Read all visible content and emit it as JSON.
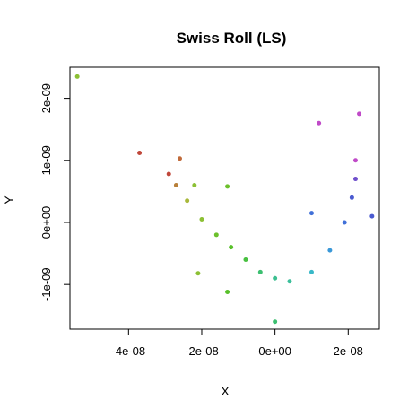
{
  "chart_data": {
    "type": "scatter",
    "title": "Swiss Roll (LS)",
    "xlabel": "X",
    "ylabel": "Y",
    "xlim": [
      -5.6e-08,
      2.85e-08
    ],
    "ylim": [
      -1.72e-09,
      2.5e-09
    ],
    "x_ticks": [
      {
        "value": -4e-08,
        "label": "-4e-08"
      },
      {
        "value": -2e-08,
        "label": "-2e-08"
      },
      {
        "value": 0,
        "label": "0e+00"
      },
      {
        "value": 2e-08,
        "label": "2e-08"
      }
    ],
    "y_ticks": [
      {
        "value": -1e-09,
        "label": "-1e-09"
      },
      {
        "value": 0,
        "label": "0e+00"
      },
      {
        "value": 1e-09,
        "label": "1e-09"
      },
      {
        "value": 2e-09,
        "label": "2e-09"
      }
    ],
    "grid": false,
    "legend": "none",
    "color_scale": "rainbow along the roll: red at upper-left arm, through yellow-green and green at the bottom, cyan and blue up the right arm, magenta at the top right",
    "colors": {
      "red": "#c0473a",
      "olive": "#a8b83a",
      "green": "#58c02a",
      "teal": "#3cbf9b",
      "blue": "#4a5ad0",
      "magenta": "#c04ac8"
    },
    "series": [
      {
        "values": [
          {
            "x": -2.9e-08,
            "y": 7.8e-10,
            "color": "#c0473a"
          },
          {
            "x": -2.7e-08,
            "y": 6e-10,
            "color": "#b8803a"
          },
          {
            "x": -2.4e-08,
            "y": 3.5e-10,
            "color": "#a8b83a"
          },
          {
            "x": -2e-08,
            "y": 5e-11,
            "color": "#8cc034"
          },
          {
            "x": -1.6e-08,
            "y": -2e-10,
            "color": "#6cc02c"
          },
          {
            "x": -1.2e-08,
            "y": -4e-10,
            "color": "#58c02a"
          },
          {
            "x": -8e-09,
            "y": -6e-10,
            "color": "#48c040"
          },
          {
            "x": -4e-09,
            "y": -8e-10,
            "color": "#3cbf70"
          },
          {
            "x": 0.0,
            "y": -9e-10,
            "color": "#3cbf90"
          },
          {
            "x": 4e-09,
            "y": -9.5e-10,
            "color": "#3cbf9b"
          },
          {
            "x": 1e-08,
            "y": -8e-10,
            "color": "#38b8c8"
          },
          {
            "x": 1.5e-08,
            "y": -4.5e-10,
            "color": "#3a98d8"
          },
          {
            "x": 1.9e-08,
            "y": 0.0,
            "color": "#4070d8"
          },
          {
            "x": 2.1e-08,
            "y": 4e-10,
            "color": "#4a5ad0"
          },
          {
            "x": 2.2e-08,
            "y": 7e-10,
            "color": "#7050cc"
          },
          {
            "x": 2.2e-08,
            "y": 1e-09,
            "color": "#c04ac8"
          },
          {
            "x": -5.4e-08,
            "y": 2.35e-09,
            "color": "#8cc034"
          },
          {
            "x": -3.7e-08,
            "y": 1.12e-09,
            "color": "#c0473a"
          },
          {
            "x": -2.6e-08,
            "y": 1.03e-09,
            "color": "#c06a3a"
          },
          {
            "x": -2.2e-08,
            "y": 6e-10,
            "color": "#8cc034"
          },
          {
            "x": -1.3e-08,
            "y": 5.8e-10,
            "color": "#6cc02c"
          },
          {
            "x": -2.1e-08,
            "y": -8.2e-10,
            "color": "#8cc034"
          },
          {
            "x": -1.3e-08,
            "y": -1.12e-09,
            "color": "#58c02a"
          },
          {
            "x": 0.0,
            "y": -1.6e-09,
            "color": "#3cbf70"
          },
          {
            "x": 1.2e-08,
            "y": 1.6e-09,
            "color": "#c04ac8"
          },
          {
            "x": 2.3e-08,
            "y": 1.75e-09,
            "color": "#c04ac8"
          },
          {
            "x": 1e-08,
            "y": 1.5e-10,
            "color": "#4070d8"
          },
          {
            "x": 2.65e-08,
            "y": 1e-10,
            "color": "#4a5ad0"
          }
        ]
      }
    ]
  }
}
